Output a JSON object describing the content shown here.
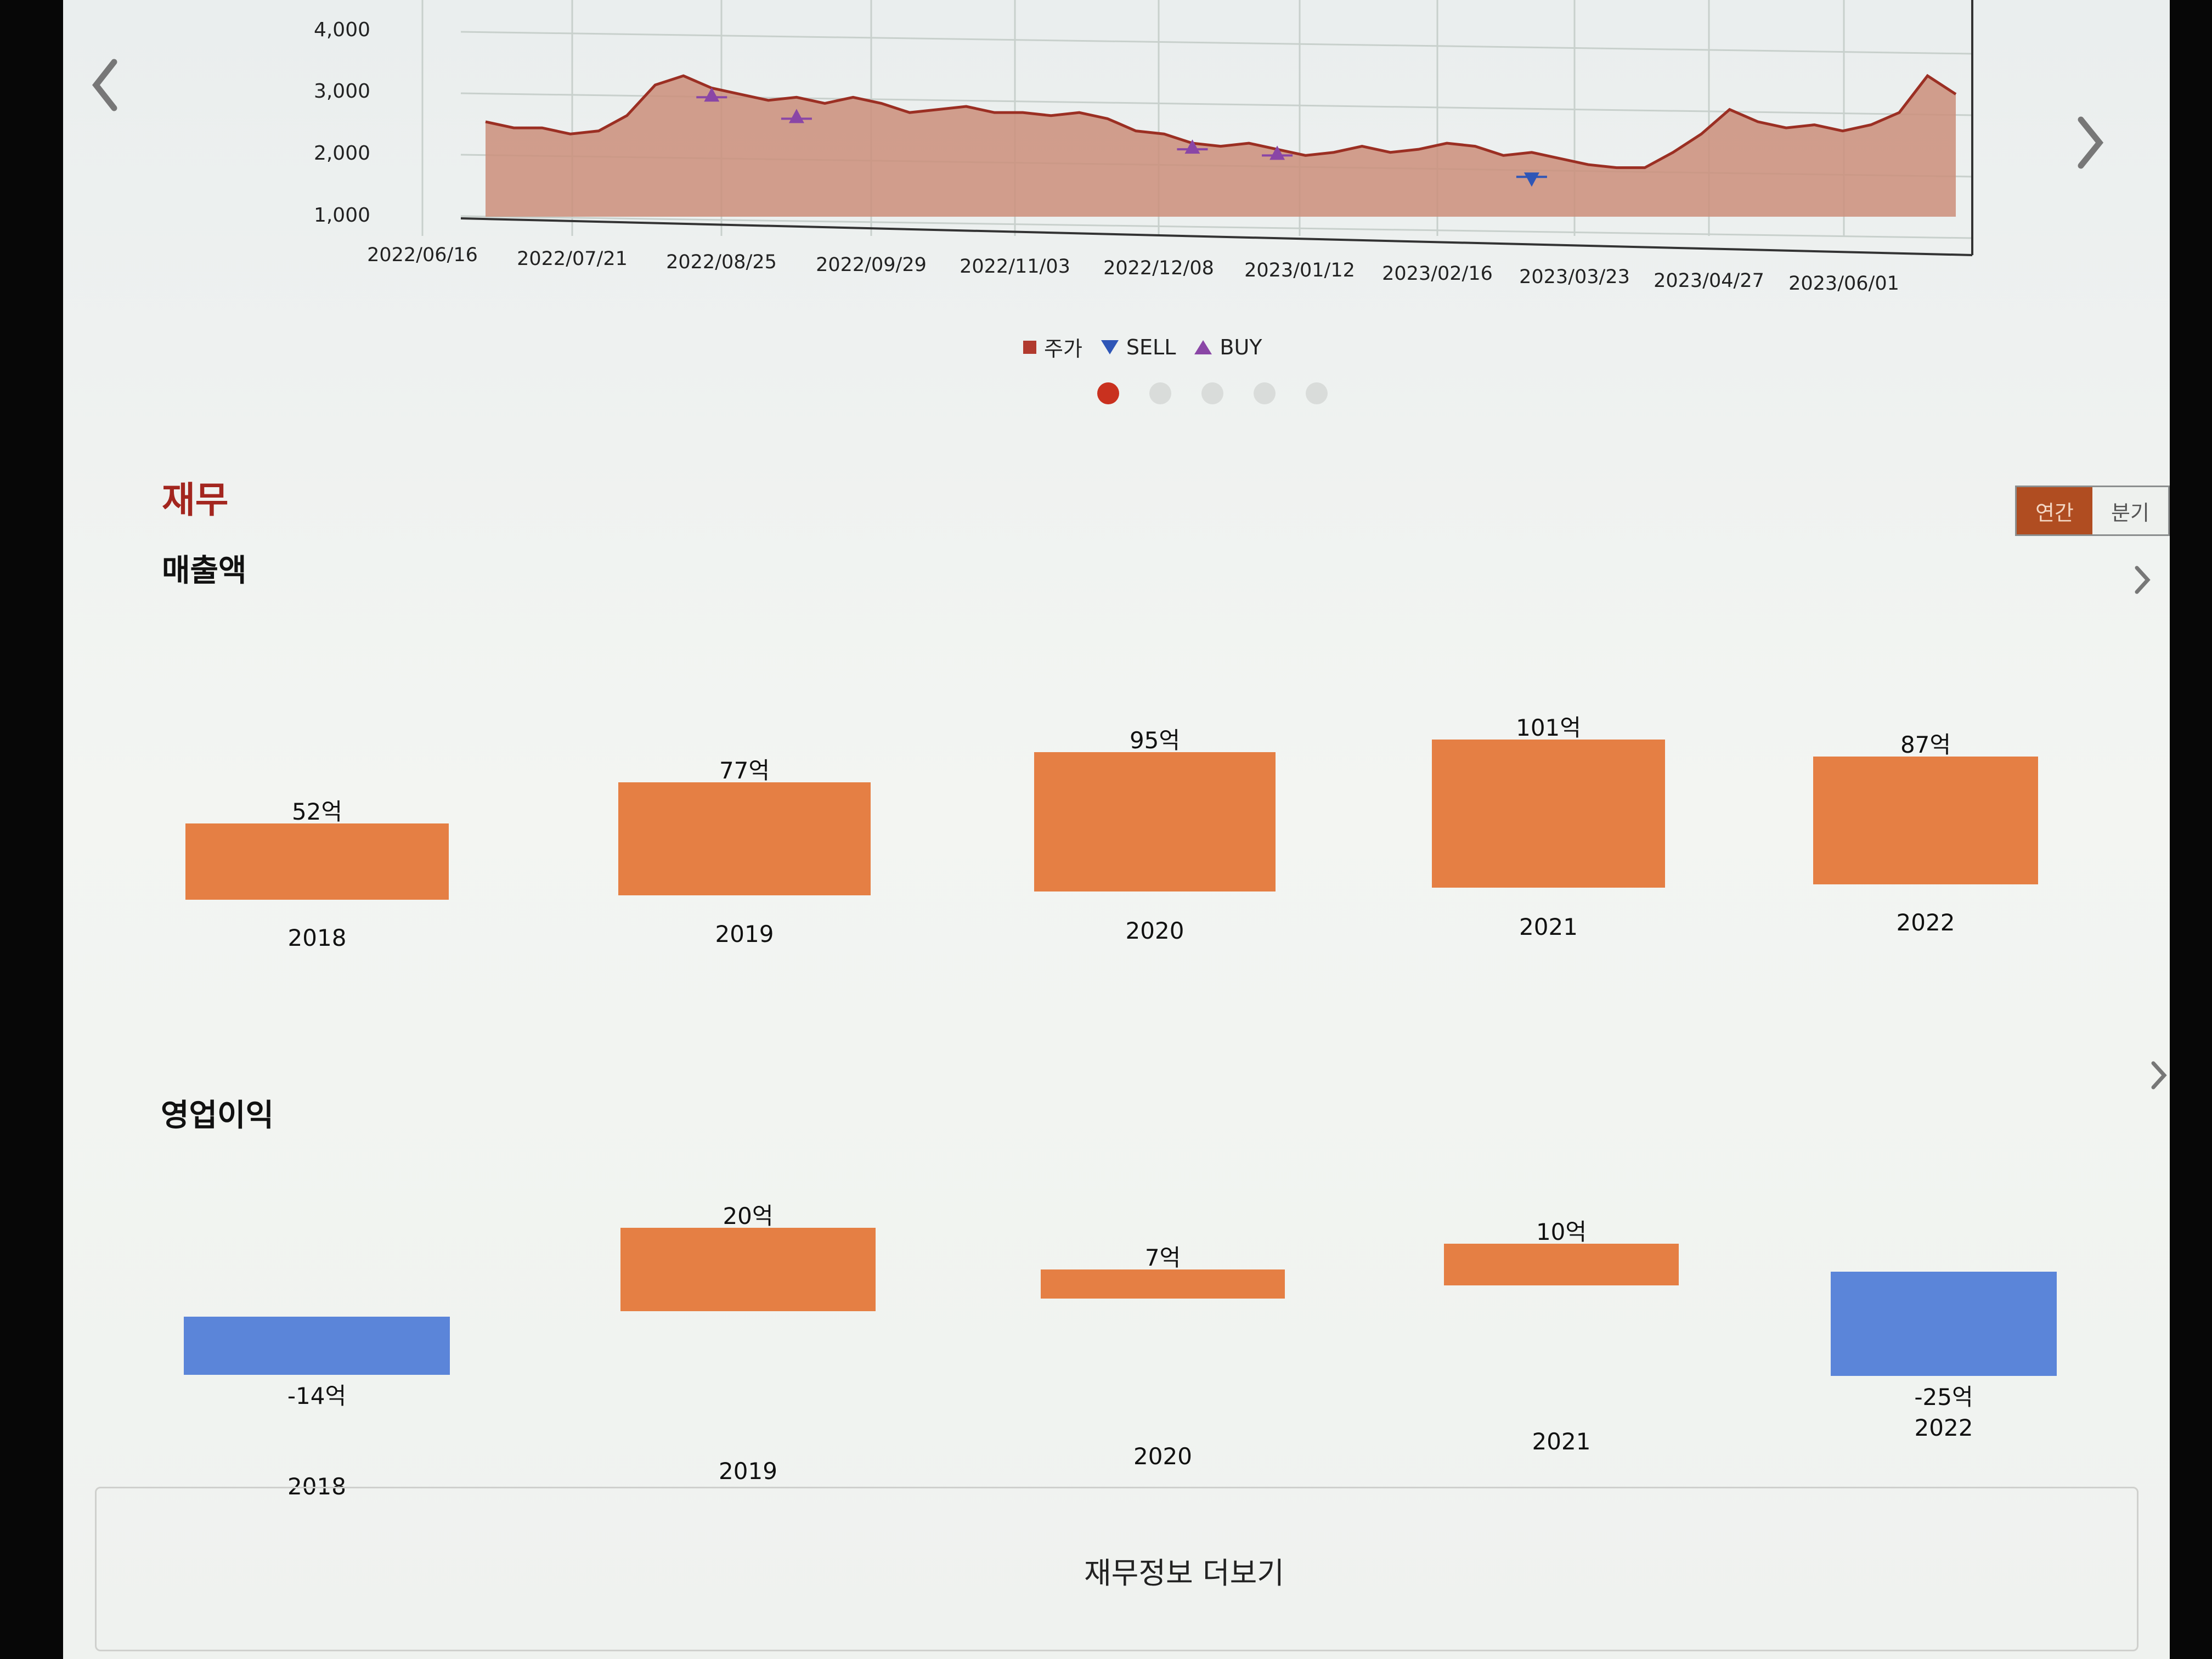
{
  "price_chart": {
    "y_ticks": [
      "4,000",
      "3,000",
      "2,000",
      "1,000"
    ],
    "x_ticks": [
      "2022/06/16",
      "2022/07/21",
      "2022/08/25",
      "2022/09/29",
      "2022/11/03",
      "2022/12/08",
      "2023/01/12",
      "2023/02/16",
      "2023/03/23",
      "2023/04/27",
      "2023/06/01"
    ],
    "legend": {
      "price": "주가",
      "sell": "SELL",
      "buy": "BUY"
    },
    "series_values": [
      2550,
      2450,
      2450,
      2350,
      2400,
      2650,
      3150,
      3300,
      3100,
      3000,
      2900,
      2950,
      2850,
      2950,
      2850,
      2700,
      2750,
      2800,
      2700,
      2700,
      2650,
      2700,
      2600,
      2400,
      2350,
      2200,
      2150,
      2200,
      2100,
      2000,
      2050,
      2150,
      2050,
      2100,
      2200,
      2150,
      2000,
      2050,
      1950,
      1850,
      1800,
      1800,
      2050,
      2350,
      2750,
      2550,
      2450,
      2500,
      2400,
      2500,
      2700,
      3300,
      3000
    ],
    "buy_points": [
      {
        "idx": 8,
        "value": 2950
      },
      {
        "idx": 11,
        "value": 2600
      },
      {
        "idx": 25,
        "value": 2100
      },
      {
        "idx": 28,
        "value": 2000
      }
    ],
    "sell_points": [
      {
        "idx": 37,
        "value": 1650
      }
    ],
    "colors": {
      "area": "#cc8f7c",
      "line": "#9b2f23",
      "buy": "#8a46a6",
      "sell": "#2e56b7",
      "grid": "#c8d0cc"
    },
    "page_indicator_count": 5,
    "active_page": 1
  },
  "section": {
    "title": "재무",
    "toggle": {
      "annual": "연간",
      "quarter": "분기"
    }
  },
  "revenue": {
    "title": "매출액",
    "bars": [
      {
        "label": "52억",
        "year": "2018",
        "value": 52
      },
      {
        "label": "77억",
        "year": "2019",
        "value": 77
      },
      {
        "label": "95억",
        "year": "2020",
        "value": 95
      },
      {
        "label": "101억",
        "year": "2021",
        "value": 101
      },
      {
        "label": "87억",
        "year": "2022",
        "value": 87
      }
    ],
    "positive_color": "#e57f44"
  },
  "operating_profit": {
    "title": "영업이익",
    "bars": [
      {
        "label": "-14억",
        "year": "2018",
        "value": -14
      },
      {
        "label": "20억",
        "year": "2019",
        "value": 20
      },
      {
        "label": "7억",
        "year": "2020",
        "value": 7
      },
      {
        "label": "10억",
        "year": "2021",
        "value": 10
      },
      {
        "label": "-25억",
        "year": "2022",
        "value": -25
      }
    ],
    "positive_color": "#e57f44",
    "negative_color": "#5b85d9"
  },
  "more_button": "재무정보 더보기"
}
